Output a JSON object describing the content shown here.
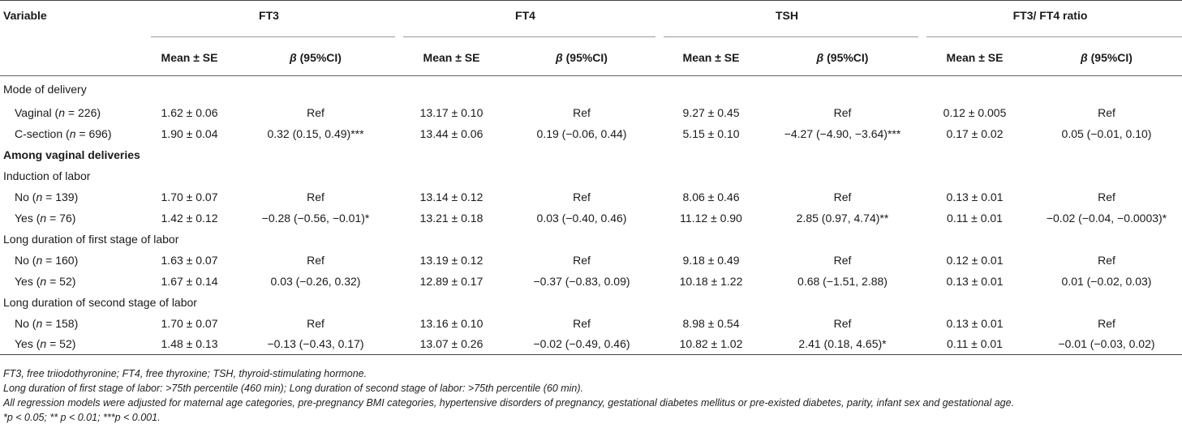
{
  "header": {
    "variable": "Variable",
    "groups": [
      "FT3",
      "FT4",
      "TSH",
      "FT3/ FT4 ratio"
    ],
    "mean_se": "Mean ± SE",
    "beta_symbol": "β",
    "beta_ci": " (95%CI)"
  },
  "rows": [
    {
      "type": "section",
      "label": "Mode of delivery"
    },
    {
      "type": "data",
      "label": "Vaginal",
      "n": "226",
      "cells": [
        "1.62 ± 0.06",
        "Ref",
        "13.17 ± 0.10",
        "Ref",
        "9.27 ± 0.45",
        "Ref",
        "0.12 ± 0.005",
        "Ref"
      ]
    },
    {
      "type": "data",
      "label": "C-section",
      "n": "696",
      "cells": [
        "1.90 ± 0.04",
        "0.32 (0.15, 0.49)***",
        "13.44 ± 0.06",
        "0.19 (−0.06, 0.44)",
        "5.15 ± 0.10",
        "−4.27 (−4.90, −3.64)***",
        "0.17 ± 0.02",
        "0.05 (−0.01, 0.10)"
      ]
    },
    {
      "type": "bold",
      "label": "Among vaginal deliveries"
    },
    {
      "type": "section",
      "label": "Induction of labor"
    },
    {
      "type": "data",
      "label": "No",
      "n": "139",
      "cells": [
        "1.70 ± 0.07",
        "Ref",
        "13.14 ± 0.12",
        "Ref",
        "8.06 ± 0.46",
        "Ref",
        "0.13 ± 0.01",
        "Ref"
      ]
    },
    {
      "type": "data",
      "label": "Yes",
      "n": "76",
      "cells": [
        "1.42 ± 0.12",
        "−0.28 (−0.56, −0.01)*",
        "13.21 ± 0.18",
        "0.03 (−0.40, 0.46)",
        "11.12 ± 0.90",
        "2.85 (0.97, 4.74)**",
        "0.11 ± 0.01",
        "−0.02 (−0.04, −0.0003)*"
      ]
    },
    {
      "type": "section",
      "label": "Long duration of first stage of labor"
    },
    {
      "type": "data",
      "label": "No",
      "n": "160",
      "cells": [
        "1.63 ± 0.07",
        "Ref",
        "13.19 ± 0.12",
        "Ref",
        "9.18 ± 0.49",
        "Ref",
        "0.12 ± 0.01",
        "Ref"
      ]
    },
    {
      "type": "data",
      "label": "Yes",
      "n": "52",
      "cells": [
        "1.67 ± 0.14",
        "0.03 (−0.26, 0.32)",
        "12.89 ± 0.17",
        "−0.37 (−0.83, 0.09)",
        "10.18 ± 1.22",
        "0.68 (−1.51, 2.88)",
        "0.13 ± 0.01",
        "0.01 (−0.02, 0.03)"
      ]
    },
    {
      "type": "section",
      "label": "Long duration of second stage of labor"
    },
    {
      "type": "data",
      "label": "No",
      "n": "158",
      "cells": [
        "1.70 ± 0.07",
        "Ref",
        "13.16 ± 0.10",
        "Ref",
        "8.98 ± 0.54",
        "Ref",
        "0.13 ± 0.01",
        "Ref"
      ]
    },
    {
      "type": "data",
      "label": "Yes",
      "n": "52",
      "cells": [
        "1.48 ± 0.13",
        "−0.13 (−0.43, 0.17)",
        "13.07 ± 0.26",
        "−0.02 (−0.49, 0.46)",
        "10.82 ± 1.02",
        "2.41 (0.18, 4.65)*",
        "0.11 ± 0.01",
        "−0.01 (−0.03, 0.02)"
      ]
    }
  ],
  "notes": [
    "FT3, free triiodothyronine; FT4, free thyroxine; TSH, thyroid-stimulating hormone.",
    "Long duration of first stage of labor: >75th percentile (460 min); Long duration of second stage of labor: >75th percentile (60 min).",
    "All regression models were adjusted for maternal age categories, pre-pregnancy BMI categories, hypertensive disorders of pregnancy, gestational diabetes mellitus or pre-existed diabetes, parity, infant sex and gestational age.",
    "*p < 0.05; ** p < 0.01; ***p < 0.001."
  ]
}
